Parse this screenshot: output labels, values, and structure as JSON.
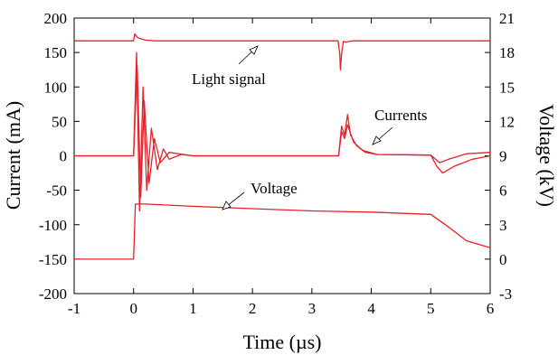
{
  "chart_data": {
    "type": "line",
    "xlabel": "Time (µs)",
    "ylabel_left": "Current (mA)",
    "ylabel_right": "Voltage (kV)",
    "xlim": [
      -1,
      6
    ],
    "ylim_left": [
      -200,
      200
    ],
    "ylim_right": [
      -3,
      21
    ],
    "x_ticks": [
      "-1",
      "0",
      "1",
      "2",
      "3",
      "4",
      "5",
      "6"
    ],
    "y_ticks_left": [
      "-200",
      "-150",
      "-100",
      "-50",
      "0",
      "50",
      "100",
      "150",
      "200"
    ],
    "y_ticks_right": [
      "-3",
      "0",
      "3",
      "6",
      "9",
      "12",
      "15",
      "18",
      "21"
    ],
    "grid": false,
    "line_color": "#e8202a",
    "annotations": [
      "Light signal",
      "Currents",
      "Voltage"
    ],
    "series": [
      {
        "axis": "left",
        "points": [
          [
            -1,
            167
          ],
          [
            0,
            167
          ],
          [
            0.02,
            177
          ],
          [
            0.06,
            172
          ],
          [
            0.12,
            170
          ],
          [
            0.2,
            168
          ],
          [
            0.35,
            167
          ],
          [
            1,
            167
          ],
          [
            3.44,
            167
          ],
          [
            3.47,
            148
          ],
          [
            3.48,
            125
          ],
          [
            3.5,
            148
          ],
          [
            3.53,
            166
          ],
          [
            3.57,
            165
          ],
          [
            3.62,
            166
          ],
          [
            3.7,
            167
          ],
          [
            6,
            167
          ]
        ]
      },
      {
        "axis": "left",
        "points": [
          [
            -1,
            0
          ],
          [
            0,
            0
          ],
          [
            0.05,
            150
          ],
          [
            0.1,
            -80
          ],
          [
            0.16,
            100
          ],
          [
            0.22,
            -50
          ],
          [
            0.3,
            40
          ],
          [
            0.4,
            -20
          ],
          [
            0.5,
            10
          ],
          [
            0.6,
            -5
          ],
          [
            0.8,
            2
          ],
          [
            1,
            0
          ],
          [
            3.45,
            0
          ],
          [
            3.5,
            43
          ],
          [
            3.55,
            30
          ],
          [
            3.6,
            60
          ],
          [
            3.65,
            30
          ],
          [
            3.75,
            15
          ],
          [
            3.9,
            5
          ],
          [
            4.1,
            2
          ],
          [
            5.0,
            1
          ],
          [
            5.1,
            -15
          ],
          [
            5.2,
            -25
          ],
          [
            5.4,
            -15
          ],
          [
            5.7,
            -5
          ],
          [
            6,
            0
          ]
        ]
      },
      {
        "axis": "left",
        "points": [
          [
            -1,
            0
          ],
          [
            0,
            0
          ],
          [
            0.06,
            130
          ],
          [
            0.12,
            -60
          ],
          [
            0.18,
            80
          ],
          [
            0.26,
            -40
          ],
          [
            0.35,
            25
          ],
          [
            0.45,
            -10
          ],
          [
            0.6,
            5
          ],
          [
            1,
            0
          ],
          [
            3.45,
            0
          ],
          [
            3.5,
            35
          ],
          [
            3.55,
            25
          ],
          [
            3.6,
            45
          ],
          [
            3.7,
            20
          ],
          [
            3.85,
            8
          ],
          [
            4.1,
            2
          ],
          [
            5.0,
            1
          ],
          [
            5.15,
            -10
          ],
          [
            5.3,
            -5
          ],
          [
            5.6,
            3
          ],
          [
            6,
            5
          ]
        ]
      },
      {
        "axis": "right",
        "points": [
          [
            -1,
            0
          ],
          [
            0,
            0
          ],
          [
            0.03,
            4.8
          ],
          [
            0.2,
            4.8
          ],
          [
            1,
            4.6
          ],
          [
            2,
            4.4
          ],
          [
            3,
            4.2
          ],
          [
            4,
            4.1
          ],
          [
            5,
            3.9
          ],
          [
            5.3,
            2.8
          ],
          [
            5.6,
            1.6
          ],
          [
            6,
            1.0
          ]
        ]
      }
    ]
  }
}
